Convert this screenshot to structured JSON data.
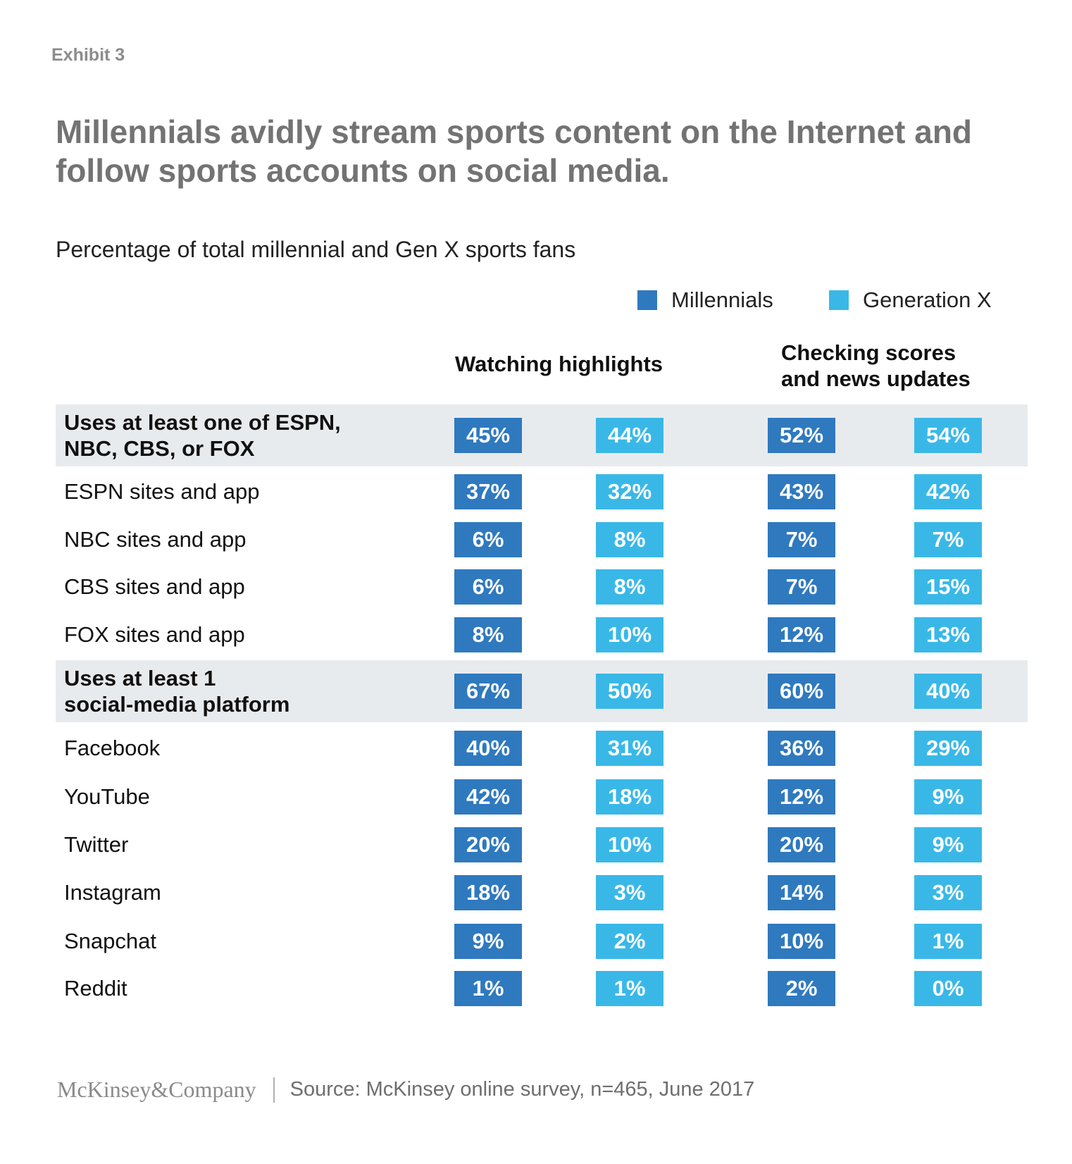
{
  "exhibit": "Exhibit 3",
  "title": "Millennials avidly stream sports content on the Internet and follow sports accounts on social media.",
  "subtitle": "Percentage of total millennial and Gen X sports fans",
  "colors": {
    "millennials": "#2f79bf",
    "genx": "#39b8e8",
    "band": "#e8ebee"
  },
  "legend": [
    {
      "label": "Millennials",
      "color": "#2f79bf"
    },
    {
      "label": "Generation X",
      "color": "#39b8e8"
    }
  ],
  "column_groups": [
    {
      "label_lines": [
        "Watching highlights"
      ]
    },
    {
      "label_lines": [
        "Checking scores",
        "and news updates"
      ]
    }
  ],
  "chart_data": {
    "type": "table",
    "title": "Millennials avidly stream sports content on the Internet and follow sports accounts on social media.",
    "subtitle": "Percentage of total millennial and Gen X sports fans",
    "series": [
      "Millennials",
      "Generation X"
    ],
    "groups": [
      "Watching highlights",
      "Checking scores and news updates"
    ],
    "rows": [
      {
        "label_lines": [
          "Uses at least one of ESPN,",
          "NBC, CBS, or FOX"
        ],
        "bold": true,
        "band": true,
        "values": [
          "45%",
          "44%",
          "52%",
          "54%"
        ]
      },
      {
        "label_lines": [
          "ESPN sites and app"
        ],
        "bold": false,
        "band": false,
        "values": [
          "37%",
          "32%",
          "43%",
          "42%"
        ]
      },
      {
        "label_lines": [
          "NBC sites and app"
        ],
        "bold": false,
        "band": false,
        "values": [
          "6%",
          "8%",
          "7%",
          "7%"
        ]
      },
      {
        "label_lines": [
          "CBS sites and app"
        ],
        "bold": false,
        "band": false,
        "values": [
          "6%",
          "8%",
          "7%",
          "15%"
        ]
      },
      {
        "label_lines": [
          "FOX sites and app"
        ],
        "bold": false,
        "band": false,
        "values": [
          "8%",
          "10%",
          "12%",
          "13%"
        ]
      },
      {
        "label_lines": [
          "Uses at least 1",
          "social-media platform"
        ],
        "bold": true,
        "band": true,
        "values": [
          "67%",
          "50%",
          "60%",
          "40%"
        ]
      },
      {
        "label_lines": [
          "Facebook"
        ],
        "bold": false,
        "band": false,
        "values": [
          "40%",
          "31%",
          "36%",
          "29%"
        ]
      },
      {
        "label_lines": [
          "YouTube"
        ],
        "bold": false,
        "band": false,
        "values": [
          "42%",
          "18%",
          "12%",
          "9%"
        ]
      },
      {
        "label_lines": [
          "Twitter"
        ],
        "bold": false,
        "band": false,
        "values": [
          "20%",
          "10%",
          "20%",
          "9%"
        ]
      },
      {
        "label_lines": [
          "Instagram"
        ],
        "bold": false,
        "band": false,
        "values": [
          "18%",
          "3%",
          "14%",
          "3%"
        ]
      },
      {
        "label_lines": [
          "Snapchat"
        ],
        "bold": false,
        "band": false,
        "values": [
          "9%",
          "2%",
          "10%",
          "1%"
        ]
      },
      {
        "label_lines": [
          "Reddit"
        ],
        "bold": false,
        "band": false,
        "values": [
          "1%",
          "1%",
          "2%",
          "0%"
        ]
      }
    ]
  },
  "footer": {
    "logo": "McKinsey&Company",
    "source": "Source: McKinsey online survey, n=465, June 2017"
  }
}
